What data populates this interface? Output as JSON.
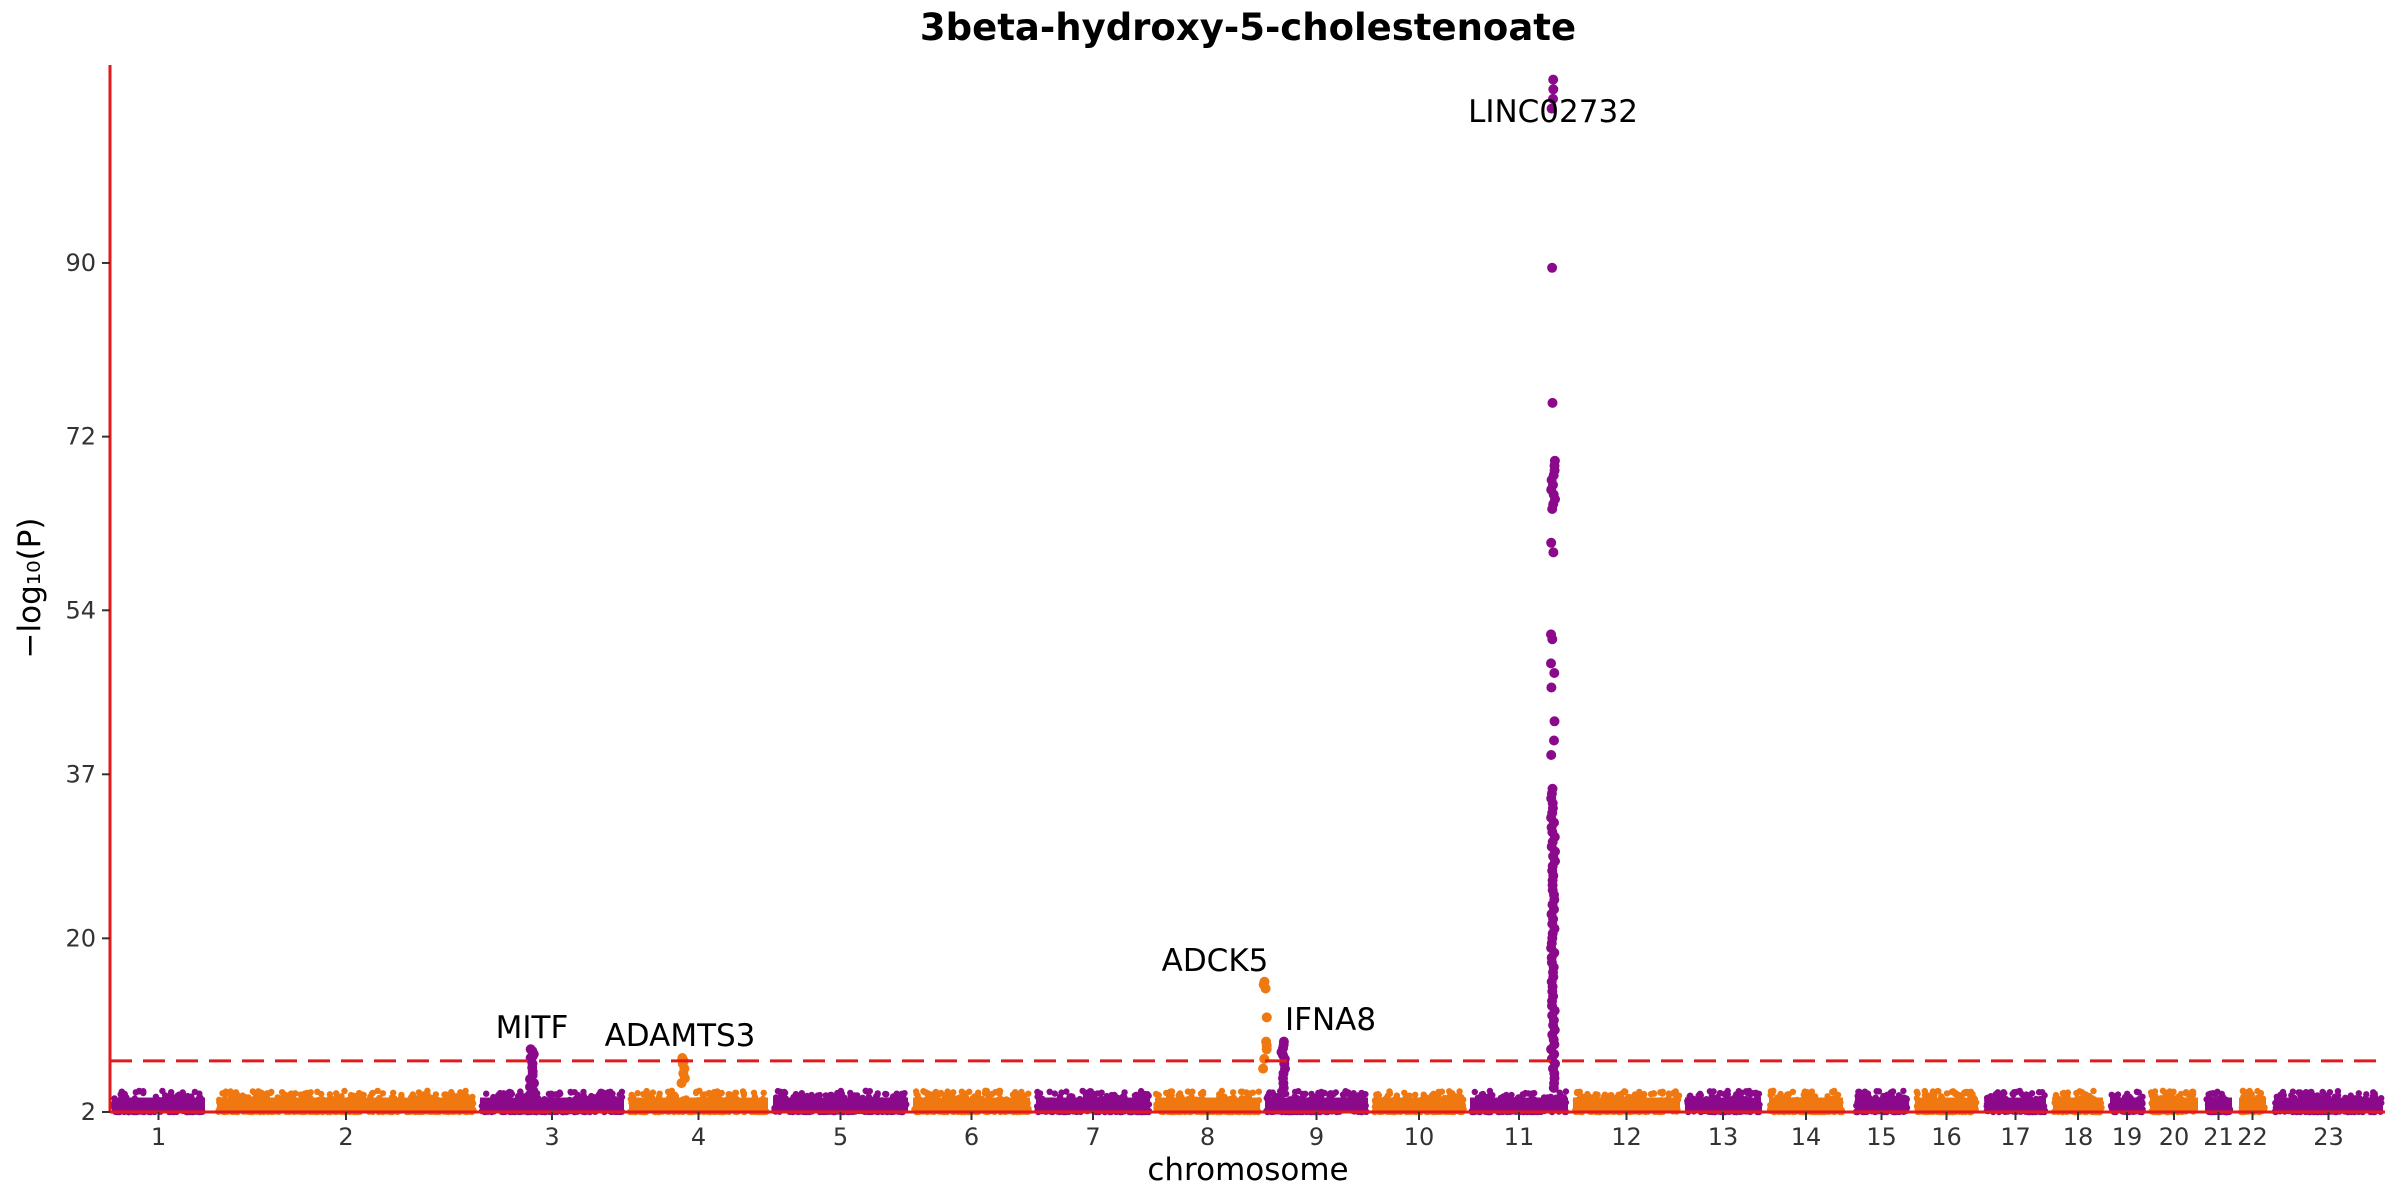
{
  "chart_data": {
    "type": "scatter",
    "title": "3beta-hydroxy-5-cholestenoate",
    "xlabel": "chromosome",
    "ylabel": "−log₁₀(P)",
    "ylim": [
      2,
      110
    ],
    "yticks": [
      2,
      20,
      37,
      54,
      72,
      90
    ],
    "significance_threshold": 7.3,
    "colors": {
      "odd_chromosomes": "#8B0A8B",
      "even_chromosomes": "#F07810",
      "axis_and_threshold": "#E31A1C"
    },
    "chromosomes": [
      {
        "label": "1"
      },
      {
        "label": "2"
      },
      {
        "label": "3"
      },
      {
        "label": "4"
      },
      {
        "label": "5"
      },
      {
        "label": "6"
      },
      {
        "label": "7"
      },
      {
        "label": "8"
      },
      {
        "label": "9"
      },
      {
        "label": "10"
      },
      {
        "label": "11"
      },
      {
        "label": "12"
      },
      {
        "label": "13"
      },
      {
        "label": "14"
      },
      {
        "label": "15"
      },
      {
        "label": "16"
      },
      {
        "label": "17"
      },
      {
        "label": "18"
      },
      {
        "label": "19"
      },
      {
        "label": "20"
      },
      {
        "label": "21"
      },
      {
        "label": "22"
      },
      {
        "label": "23"
      }
    ],
    "peaks": [
      {
        "chromosome": "3",
        "label": "MITF",
        "max_y": 8.5,
        "values": [
          8.5,
          8.3,
          8.0,
          7.8,
          7.6,
          7.4,
          7.0,
          6.6,
          6.2,
          5.8,
          5.4,
          5.0,
          4.6,
          4.2,
          3.8
        ]
      },
      {
        "chromosome": "4",
        "label": "ADAMTS3",
        "max_y": 7.6,
        "values": [
          7.6,
          7.3,
          7.0,
          6.5,
          6.0,
          5.5,
          5.0
        ]
      },
      {
        "chromosome": "8",
        "label": "ADCK5",
        "max_y": 15.5,
        "values": [
          15.5,
          15.2,
          14.8,
          11.8,
          9.3,
          8.9,
          8.5,
          7.5,
          6.5
        ]
      },
      {
        "chromosome": "9",
        "label": "IFNA8",
        "max_y": 9.3,
        "values": [
          9.3,
          9.0,
          8.6,
          8.2,
          7.9,
          7.5,
          7.0,
          6.5,
          6.0,
          5.5,
          5.0,
          4.5
        ]
      },
      {
        "chromosome": "11",
        "label": "LINC02732",
        "max_y": 109,
        "values": [
          109,
          108,
          107,
          106,
          89.5,
          75.5,
          69.5,
          69.0,
          68.5,
          68.0,
          67.5,
          67.0,
          66.5,
          66.0,
          65.5,
          65.0,
          64.5,
          61.0,
          60.0,
          51.5,
          51.0,
          48.5,
          47.5,
          46.0,
          42.5,
          40.5,
          39.0,
          35.5,
          35.0,
          34.5,
          34.0,
          33.5,
          33.0,
          32.5,
          32.0,
          31.5,
          31.0,
          30.5,
          30.0,
          29.5,
          29.0,
          28.5,
          28.0,
          27.5,
          27.0,
          26.5,
          26.0,
          25.5,
          25.0,
          24.5,
          24.0,
          23.5,
          23.0,
          22.5,
          22.0,
          21.5,
          21.0,
          20.5,
          20.0,
          19.5,
          19.0,
          18.5,
          18.0,
          17.5,
          17.0,
          16.5,
          16.0,
          15.5,
          15.0,
          14.5,
          14.0,
          13.5,
          13.0,
          12.5,
          12.0,
          11.5,
          11.0,
          10.5,
          10.0,
          9.5,
          9.0,
          8.5,
          8.0,
          7.5,
          7.0,
          6.5,
          6.0,
          5.5,
          5.0,
          4.5
        ]
      }
    ]
  }
}
